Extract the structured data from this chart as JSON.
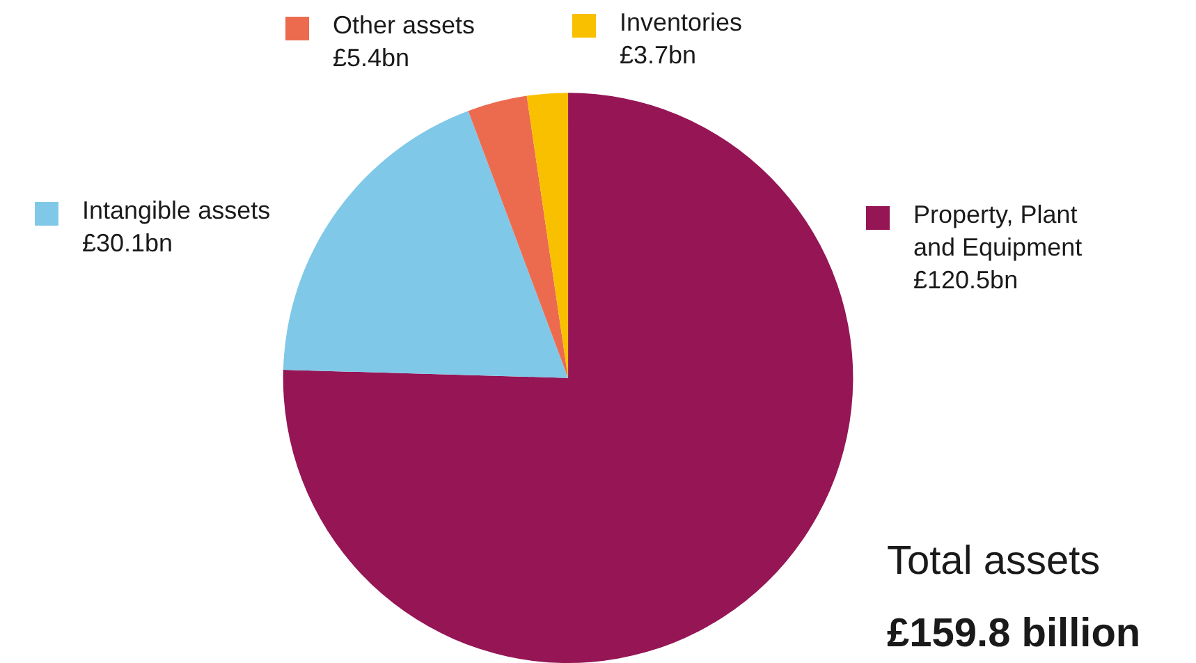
{
  "chart_data": {
    "type": "pie",
    "categories": [
      "Property, Plant and Equipment",
      "Intangible assets",
      "Other assets",
      "Inventories"
    ],
    "values": [
      120.5,
      30.1,
      5.4,
      3.7
    ],
    "value_labels": [
      "£120.5bn",
      "£30.1bn",
      "£5.4bn",
      "£3.7bn"
    ],
    "colors": [
      "#951555",
      "#80c8e8",
      "#ec6b4f",
      "#f9c000"
    ],
    "legend": "top",
    "annotations": [
      "Total assets",
      "£159.8 billion"
    ]
  }
}
